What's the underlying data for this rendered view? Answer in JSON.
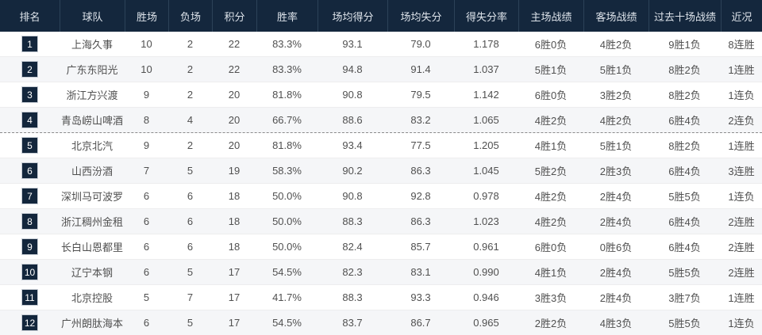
{
  "colors": {
    "header_bg": "#14273d",
    "header_text": "#dde3ea",
    "header_divider": "#2c4258",
    "body_text": "#505050",
    "row_alt_bg": "#f5f6f8",
    "row_divider": "#ededee",
    "badge_bg": "#13263c",
    "badge_border": "#c6ccd4",
    "cutoff_line": "#8b8b8b"
  },
  "table": {
    "playoff_cutoff_after_rank": "4",
    "columns": [
      {
        "key": "rank",
        "label": "排名"
      },
      {
        "key": "team",
        "label": "球队"
      },
      {
        "key": "wins",
        "label": "胜场"
      },
      {
        "key": "losses",
        "label": "负场"
      },
      {
        "key": "points",
        "label": "积分"
      },
      {
        "key": "win_rate",
        "label": "胜率"
      },
      {
        "key": "pts_for",
        "label": "场均得分"
      },
      {
        "key": "pts_against",
        "label": "场均失分"
      },
      {
        "key": "ratio",
        "label": "得失分率"
      },
      {
        "key": "home_record",
        "label": "主场战绩"
      },
      {
        "key": "away_record",
        "label": "客场战绩"
      },
      {
        "key": "last10_record",
        "label": "过去十场战绩"
      },
      {
        "key": "streak",
        "label": "近况"
      }
    ],
    "rows": [
      {
        "rank": "1",
        "team": "上海久事",
        "wins": "10",
        "losses": "2",
        "points": "22",
        "win_rate": "83.3%",
        "pts_for": "93.1",
        "pts_against": "79.0",
        "ratio": "1.178",
        "home_record": "6胜0负",
        "away_record": "4胜2负",
        "last10_record": "9胜1负",
        "streak": "8连胜"
      },
      {
        "rank": "2",
        "team": "广东东阳光",
        "wins": "10",
        "losses": "2",
        "points": "22",
        "win_rate": "83.3%",
        "pts_for": "94.8",
        "pts_against": "91.4",
        "ratio": "1.037",
        "home_record": "5胜1负",
        "away_record": "5胜1负",
        "last10_record": "8胜2负",
        "streak": "1连胜"
      },
      {
        "rank": "3",
        "team": "浙江方兴渡",
        "wins": "9",
        "losses": "2",
        "points": "20",
        "win_rate": "81.8%",
        "pts_for": "90.8",
        "pts_against": "79.5",
        "ratio": "1.142",
        "home_record": "6胜0负",
        "away_record": "3胜2负",
        "last10_record": "8胜2负",
        "streak": "1连负"
      },
      {
        "rank": "4",
        "team": "青岛崂山啤酒",
        "wins": "8",
        "losses": "4",
        "points": "20",
        "win_rate": "66.7%",
        "pts_for": "88.6",
        "pts_against": "83.2",
        "ratio": "1.065",
        "home_record": "4胜2负",
        "away_record": "4胜2负",
        "last10_record": "6胜4负",
        "streak": "2连负"
      },
      {
        "rank": "5",
        "team": "北京北汽",
        "wins": "9",
        "losses": "2",
        "points": "20",
        "win_rate": "81.8%",
        "pts_for": "93.4",
        "pts_against": "77.5",
        "ratio": "1.205",
        "home_record": "4胜1负",
        "away_record": "5胜1负",
        "last10_record": "8胜2负",
        "streak": "1连胜"
      },
      {
        "rank": "6",
        "team": "山西汾酒",
        "wins": "7",
        "losses": "5",
        "points": "19",
        "win_rate": "58.3%",
        "pts_for": "90.2",
        "pts_against": "86.3",
        "ratio": "1.045",
        "home_record": "5胜2负",
        "away_record": "2胜3负",
        "last10_record": "6胜4负",
        "streak": "3连胜"
      },
      {
        "rank": "7",
        "team": "深圳马可波罗",
        "wins": "6",
        "losses": "6",
        "points": "18",
        "win_rate": "50.0%",
        "pts_for": "90.8",
        "pts_against": "92.8",
        "ratio": "0.978",
        "home_record": "4胜2负",
        "away_record": "2胜4负",
        "last10_record": "5胜5负",
        "streak": "1连负"
      },
      {
        "rank": "8",
        "team": "浙江稠州金租",
        "wins": "6",
        "losses": "6",
        "points": "18",
        "win_rate": "50.0%",
        "pts_for": "88.3",
        "pts_against": "86.3",
        "ratio": "1.023",
        "home_record": "4胜2负",
        "away_record": "2胜4负",
        "last10_record": "6胜4负",
        "streak": "2连胜"
      },
      {
        "rank": "9",
        "team": "长白山恩都里",
        "wins": "6",
        "losses": "6",
        "points": "18",
        "win_rate": "50.0%",
        "pts_for": "82.4",
        "pts_against": "85.7",
        "ratio": "0.961",
        "home_record": "6胜0负",
        "away_record": "0胜6负",
        "last10_record": "6胜4负",
        "streak": "2连胜"
      },
      {
        "rank": "10",
        "team": "辽宁本钢",
        "wins": "6",
        "losses": "5",
        "points": "17",
        "win_rate": "54.5%",
        "pts_for": "82.3",
        "pts_against": "83.1",
        "ratio": "0.990",
        "home_record": "4胜1负",
        "away_record": "2胜4负",
        "last10_record": "5胜5负",
        "streak": "2连胜"
      },
      {
        "rank": "11",
        "team": "北京控股",
        "wins": "5",
        "losses": "7",
        "points": "17",
        "win_rate": "41.7%",
        "pts_for": "88.3",
        "pts_against": "93.3",
        "ratio": "0.946",
        "home_record": "3胜3负",
        "away_record": "2胜4负",
        "last10_record": "3胜7负",
        "streak": "1连胜"
      },
      {
        "rank": "12",
        "team": "广州朗肽海本",
        "wins": "6",
        "losses": "5",
        "points": "17",
        "win_rate": "54.5%",
        "pts_for": "83.7",
        "pts_against": "86.7",
        "ratio": "0.965",
        "home_record": "2胜2负",
        "away_record": "4胜3负",
        "last10_record": "5胜5负",
        "streak": "1连负"
      }
    ]
  }
}
